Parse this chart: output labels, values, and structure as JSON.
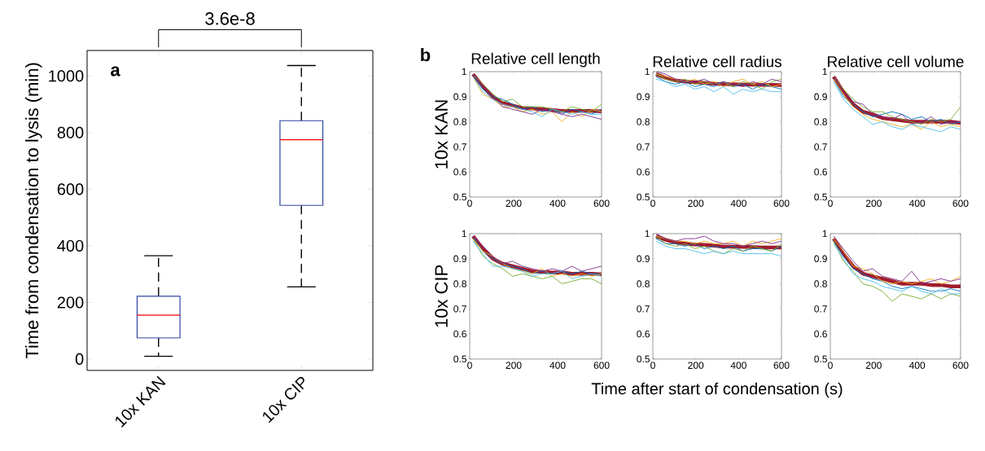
{
  "chart_data": [
    {
      "type": "box",
      "categories": [
        "10x KAN",
        "10x CIP"
      ],
      "ylabel": "Time from condensation to lysis (min)",
      "color": "#2e45a3",
      "boxes": [
        {
          "low": 10,
          "q1": 75,
          "median": 155,
          "q3": 222,
          "high": 365
        },
        {
          "low": 255,
          "q1": 543,
          "median": 775,
          "q3": 842,
          "high": 1037
        }
      ],
      "ylim": [
        -40,
        1090
      ],
      "yticks": [
        0,
        200,
        400,
        600,
        800,
        1000
      ],
      "annotations": [
        "a",
        "3.6e-8"
      ]
    },
    {
      "type": "line",
      "title": "Relative cell length",
      "ylabel": "10x KAN",
      "annotations": [
        "b"
      ],
      "x": [
        15,
        60,
        105,
        150,
        195,
        240,
        285,
        330,
        375,
        420,
        465,
        510,
        555,
        600
      ],
      "xlim": [
        0,
        600
      ],
      "xticks": [
        0,
        200,
        400,
        600
      ],
      "ylim": [
        0.5,
        1
      ],
      "yticks": [
        0.5,
        0.6,
        0.7,
        0.8,
        0.9,
        1
      ],
      "series": [
        {
          "color": "#0072bd",
          "values": [
            0.99,
            0.93,
            0.9,
            0.89,
            0.87,
            0.85,
            0.86,
            0.84,
            0.85,
            0.83,
            0.85,
            0.84,
            0.83,
            0.85
          ]
        },
        {
          "color": "#edb120",
          "values": [
            0.98,
            0.91,
            0.89,
            0.86,
            0.86,
            0.84,
            0.85,
            0.83,
            0.84,
            0.8,
            0.84,
            0.82,
            0.85,
            0.84
          ]
        },
        {
          "color": "#77ac30",
          "values": [
            0.99,
            0.95,
            0.91,
            0.88,
            0.89,
            0.86,
            0.86,
            0.86,
            0.85,
            0.84,
            0.86,
            0.85,
            0.84,
            0.87
          ]
        },
        {
          "color": "#7e2f8e",
          "values": [
            0.99,
            0.94,
            0.9,
            0.86,
            0.85,
            0.84,
            0.83,
            0.85,
            0.84,
            0.83,
            0.82,
            0.83,
            0.82,
            0.81
          ]
        },
        {
          "color": "#4dbeee",
          "values": [
            0.98,
            0.92,
            0.89,
            0.87,
            0.86,
            0.85,
            0.84,
            0.82,
            0.85,
            0.84,
            0.83,
            0.84,
            0.83,
            0.83
          ]
        },
        {
          "color": "#a01c2e",
          "values": [
            0.99,
            0.94,
            0.9,
            0.875,
            0.865,
            0.855,
            0.853,
            0.85,
            0.847,
            0.843,
            0.843,
            0.843,
            0.843,
            0.842
          ]
        }
      ]
    },
    {
      "type": "line",
      "title": "Relative cell radius",
      "x": [
        15,
        60,
        105,
        150,
        195,
        240,
        285,
        330,
        375,
        420,
        465,
        510,
        555,
        600
      ],
      "xlim": [
        0,
        600
      ],
      "xticks": [
        0,
        200,
        400,
        600
      ],
      "ylim": [
        0.5,
        1
      ],
      "yticks": [
        0.5,
        0.6,
        0.7,
        0.8,
        0.9,
        1
      ],
      "series": [
        {
          "color": "#0072bd",
          "values": [
            0.98,
            0.96,
            0.95,
            0.96,
            0.94,
            0.95,
            0.94,
            0.96,
            0.94,
            0.95,
            0.93,
            0.95,
            0.94,
            0.93
          ]
        },
        {
          "color": "#edb120",
          "values": [
            0.99,
            0.98,
            0.97,
            0.96,
            0.97,
            0.95,
            0.96,
            0.94,
            0.96,
            0.97,
            0.95,
            0.96,
            0.94,
            0.95
          ]
        },
        {
          "color": "#77ac30",
          "values": [
            0.99,
            0.97,
            0.96,
            0.97,
            0.95,
            0.96,
            0.95,
            0.96,
            0.94,
            0.96,
            0.95,
            0.93,
            0.96,
            0.97
          ]
        },
        {
          "color": "#7e2f8e",
          "values": [
            1.0,
            0.99,
            0.97,
            0.96,
            0.96,
            0.97,
            0.95,
            0.96,
            0.95,
            0.94,
            0.96,
            0.95,
            0.97,
            0.96
          ]
        },
        {
          "color": "#4dbeee",
          "values": [
            0.97,
            0.96,
            0.94,
            0.95,
            0.93,
            0.94,
            0.92,
            0.94,
            0.91,
            0.93,
            0.92,
            0.93,
            0.92,
            0.92
          ]
        },
        {
          "color": "#a01c2e",
          "values": [
            0.99,
            0.975,
            0.965,
            0.96,
            0.958,
            0.955,
            0.952,
            0.95,
            0.95,
            0.948,
            0.948,
            0.947,
            0.947,
            0.946
          ]
        }
      ]
    },
    {
      "type": "line",
      "title": "Relative cell volume",
      "x": [
        15,
        60,
        105,
        150,
        195,
        240,
        285,
        330,
        375,
        420,
        465,
        510,
        555,
        600
      ],
      "xlim": [
        0,
        600
      ],
      "xticks": [
        0,
        200,
        400,
        600
      ],
      "ylim": [
        0.5,
        1
      ],
      "yticks": [
        0.5,
        0.6,
        0.7,
        0.8,
        0.9,
        1
      ],
      "series": [
        {
          "color": "#0072bd",
          "values": [
            0.97,
            0.9,
            0.87,
            0.84,
            0.82,
            0.83,
            0.84,
            0.83,
            0.81,
            0.82,
            0.8,
            0.81,
            0.79,
            0.8
          ]
        },
        {
          "color": "#edb120",
          "values": [
            0.97,
            0.91,
            0.86,
            0.83,
            0.81,
            0.8,
            0.79,
            0.78,
            0.79,
            0.77,
            0.8,
            0.78,
            0.79,
            0.78
          ]
        },
        {
          "color": "#77ac30",
          "values": [
            0.98,
            0.93,
            0.89,
            0.86,
            0.84,
            0.84,
            0.82,
            0.81,
            0.8,
            0.79,
            0.81,
            0.8,
            0.81,
            0.86
          ]
        },
        {
          "color": "#7e2f8e",
          "values": [
            0.98,
            0.92,
            0.88,
            0.87,
            0.83,
            0.82,
            0.81,
            0.83,
            0.79,
            0.8,
            0.82,
            0.79,
            0.8,
            0.8
          ]
        },
        {
          "color": "#4dbeee",
          "values": [
            0.96,
            0.89,
            0.85,
            0.82,
            0.79,
            0.8,
            0.78,
            0.77,
            0.79,
            0.78,
            0.77,
            0.76,
            0.78,
            0.77
          ]
        },
        {
          "color": "#a01c2e",
          "values": [
            0.98,
            0.92,
            0.87,
            0.84,
            0.83,
            0.815,
            0.81,
            0.805,
            0.8,
            0.8,
            0.8,
            0.8,
            0.8,
            0.795
          ]
        }
      ]
    },
    {
      "type": "line",
      "ylabel": "10x CIP",
      "x": [
        15,
        60,
        105,
        150,
        195,
        240,
        285,
        330,
        375,
        420,
        465,
        510,
        555,
        600
      ],
      "xlim": [
        0,
        600
      ],
      "xticks": [
        0,
        200,
        400,
        600
      ],
      "ylim": [
        0.5,
        1
      ],
      "yticks": [
        0.5,
        0.6,
        0.7,
        0.8,
        0.9,
        1
      ],
      "series": [
        {
          "color": "#0072bd",
          "values": [
            0.99,
            0.93,
            0.9,
            0.88,
            0.87,
            0.86,
            0.84,
            0.85,
            0.84,
            0.85,
            0.84,
            0.85,
            0.84,
            0.84
          ]
        },
        {
          "color": "#edb120",
          "values": [
            0.98,
            0.93,
            0.91,
            0.88,
            0.86,
            0.85,
            0.84,
            0.86,
            0.83,
            0.84,
            0.83,
            0.84,
            0.83,
            0.84
          ]
        },
        {
          "color": "#77ac30",
          "values": [
            0.98,
            0.91,
            0.88,
            0.86,
            0.83,
            0.84,
            0.83,
            0.82,
            0.83,
            0.8,
            0.81,
            0.82,
            0.82,
            0.8
          ]
        },
        {
          "color": "#7e2f8e",
          "values": [
            0.99,
            0.95,
            0.91,
            0.88,
            0.89,
            0.87,
            0.86,
            0.85,
            0.86,
            0.85,
            0.87,
            0.85,
            0.86,
            0.87
          ]
        },
        {
          "color": "#4dbeee",
          "values": [
            0.97,
            0.92,
            0.87,
            0.87,
            0.86,
            0.85,
            0.83,
            0.84,
            0.84,
            0.85,
            0.82,
            0.83,
            0.84,
            0.83
          ]
        },
        {
          "color": "#a01c2e",
          "values": [
            0.99,
            0.94,
            0.9,
            0.88,
            0.87,
            0.86,
            0.85,
            0.847,
            0.845,
            0.845,
            0.84,
            0.84,
            0.84,
            0.838
          ]
        }
      ]
    },
    {
      "type": "line",
      "xlabel": "Time after start of condensation (s)",
      "x": [
        15,
        60,
        105,
        150,
        195,
        240,
        285,
        330,
        375,
        420,
        465,
        510,
        555,
        600
      ],
      "xlim": [
        0,
        600
      ],
      "xticks": [
        0,
        200,
        400,
        600
      ],
      "ylim": [
        0.5,
        1
      ],
      "yticks": [
        0.5,
        0.6,
        0.7,
        0.8,
        0.9,
        1
      ],
      "series": [
        {
          "color": "#0072bd",
          "values": [
            0.98,
            0.96,
            0.96,
            0.95,
            0.96,
            0.94,
            0.95,
            0.94,
            0.95,
            0.93,
            0.94,
            0.94,
            0.93,
            0.95
          ]
        },
        {
          "color": "#edb120",
          "values": [
            0.99,
            0.98,
            0.97,
            0.97,
            0.96,
            0.97,
            0.96,
            0.96,
            0.97,
            0.95,
            0.97,
            0.96,
            0.97,
            0.98
          ]
        },
        {
          "color": "#77ac30",
          "values": [
            0.99,
            0.96,
            0.95,
            0.96,
            0.94,
            0.95,
            0.93,
            0.92,
            0.94,
            0.93,
            0.95,
            0.94,
            0.93,
            0.96
          ]
        },
        {
          "color": "#7e2f8e",
          "values": [
            1.0,
            0.98,
            0.97,
            0.98,
            0.98,
            0.99,
            0.97,
            0.96,
            0.96,
            0.95,
            0.96,
            0.97,
            0.96,
            0.97
          ]
        },
        {
          "color": "#4dbeee",
          "values": [
            0.97,
            0.95,
            0.94,
            0.94,
            0.93,
            0.92,
            0.93,
            0.92,
            0.93,
            0.92,
            0.92,
            0.92,
            0.92,
            0.91
          ]
        },
        {
          "color": "#a01c2e",
          "values": [
            0.99,
            0.975,
            0.965,
            0.96,
            0.957,
            0.955,
            0.952,
            0.948,
            0.948,
            0.947,
            0.946,
            0.945,
            0.945,
            0.945
          ]
        }
      ]
    },
    {
      "type": "line",
      "x": [
        15,
        60,
        105,
        150,
        195,
        240,
        285,
        330,
        375,
        420,
        465,
        510,
        555,
        600
      ],
      "xlim": [
        0,
        600
      ],
      "xticks": [
        0,
        200,
        400,
        600
      ],
      "ylim": [
        0.5,
        1
      ],
      "yticks": [
        0.5,
        0.6,
        0.7,
        0.8,
        0.9,
        1
      ],
      "series": [
        {
          "color": "#0072bd",
          "values": [
            0.97,
            0.91,
            0.86,
            0.84,
            0.82,
            0.81,
            0.79,
            0.78,
            0.79,
            0.78,
            0.77,
            0.77,
            0.78,
            0.77
          ]
        },
        {
          "color": "#edb120",
          "values": [
            0.98,
            0.93,
            0.87,
            0.86,
            0.84,
            0.81,
            0.8,
            0.81,
            0.8,
            0.81,
            0.82,
            0.8,
            0.81,
            0.83
          ]
        },
        {
          "color": "#77ac30",
          "values": [
            0.97,
            0.89,
            0.85,
            0.8,
            0.79,
            0.77,
            0.73,
            0.76,
            0.75,
            0.74,
            0.76,
            0.74,
            0.76,
            0.75
          ]
        },
        {
          "color": "#7e2f8e",
          "values": [
            0.99,
            0.94,
            0.89,
            0.85,
            0.86,
            0.83,
            0.82,
            0.81,
            0.85,
            0.8,
            0.81,
            0.82,
            0.81,
            0.82
          ]
        },
        {
          "color": "#4dbeee",
          "values": [
            0.96,
            0.9,
            0.84,
            0.82,
            0.81,
            0.79,
            0.78,
            0.77,
            0.79,
            0.77,
            0.76,
            0.78,
            0.76,
            0.76
          ]
        },
        {
          "color": "#a01c2e",
          "values": [
            0.98,
            0.92,
            0.87,
            0.84,
            0.83,
            0.82,
            0.81,
            0.8,
            0.8,
            0.8,
            0.795,
            0.795,
            0.79,
            0.79
          ]
        }
      ]
    }
  ]
}
